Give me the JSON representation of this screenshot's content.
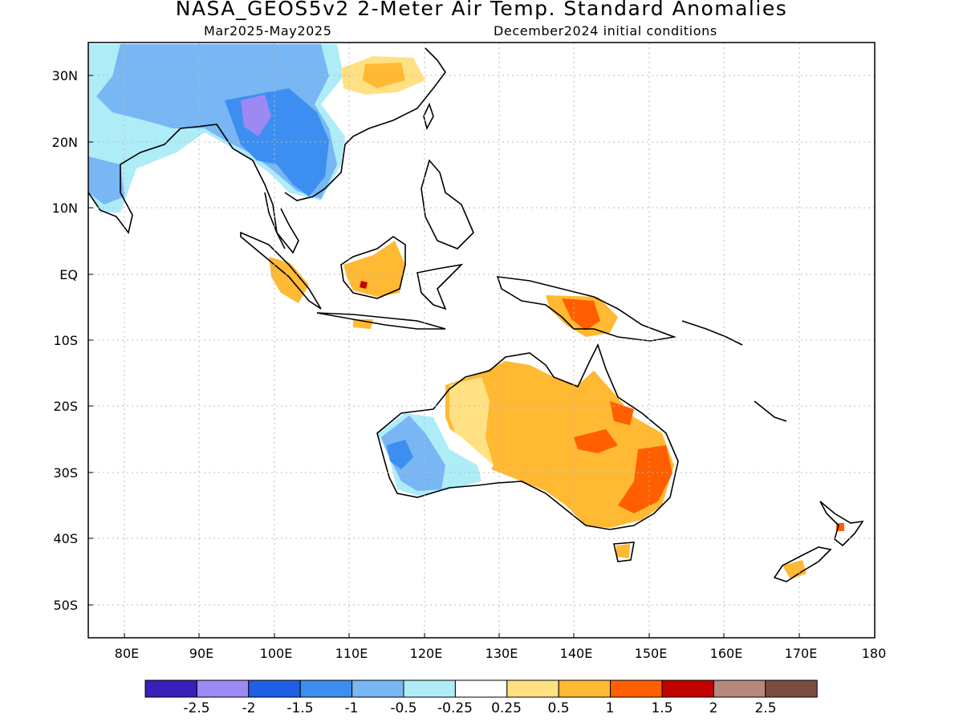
{
  "title": "NASA_GEOS5v2 2-Meter Air Temp. Standard Anomalies",
  "subtitle_left": "Mar2025-May2025",
  "subtitle_right": "December2024 initial conditions",
  "map": {
    "lon_range": [
      75,
      180
    ],
    "lat_range": [
      -55,
      35
    ],
    "lon_ticks": [
      "80E",
      "90E",
      "100E",
      "110E",
      "120E",
      "130E",
      "140E",
      "150E",
      "160E",
      "170E",
      "180"
    ],
    "lat_ticks": [
      "30N",
      "20N",
      "10N",
      "EQ",
      "10S",
      "20S",
      "30S",
      "40S",
      "50S"
    ],
    "gridlines": "dotted"
  },
  "colorbar": {
    "colors": [
      "#3a1fb8",
      "#9c89f4",
      "#1f5fe6",
      "#3c8ff0",
      "#78b6f4",
      "#aeecf8",
      "#ffffff",
      "#ffe183",
      "#ffb932",
      "#ff5f00",
      "#c10000",
      "#b4887a",
      "#7a4e3f"
    ],
    "labels": [
      "-2.5",
      "-2",
      "-1.5",
      "-1",
      "-0.5",
      "-0.25",
      "0.25",
      "0.5",
      "1",
      "1.5",
      "2",
      "2.5"
    ]
  }
}
